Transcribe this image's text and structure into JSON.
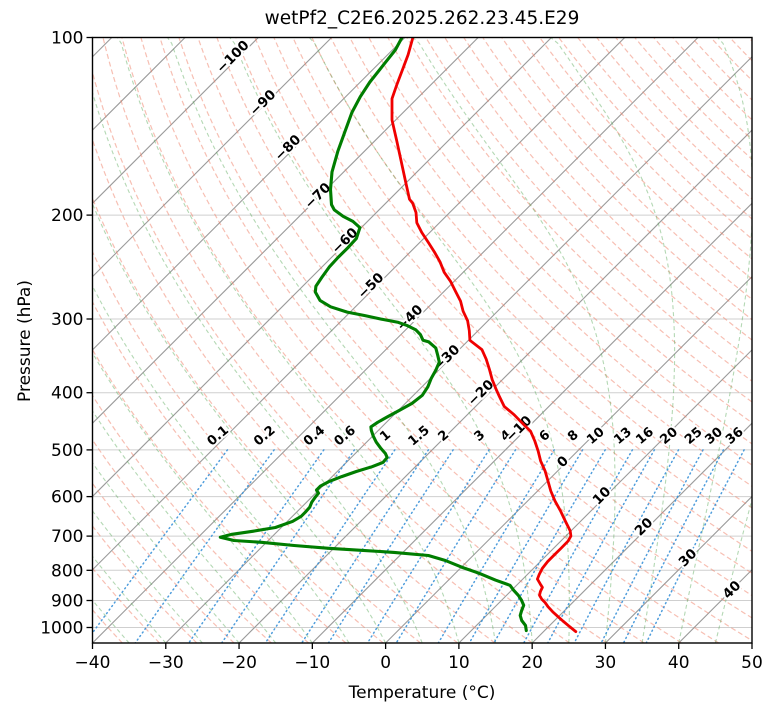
{
  "title": "wetPf2_C2E6.2025.262.23.45.E29",
  "axes": {
    "xlabel": "Temperature (°C)",
    "ylabel": "Pressure (hPa)",
    "x_tick_values": [
      -40,
      -30,
      -20,
      -10,
      0,
      10,
      20,
      30,
      40,
      50
    ],
    "x_tick_labels": [
      "−40",
      "−30",
      "−20",
      "−10",
      "0",
      "10",
      "20",
      "30",
      "40",
      "50"
    ],
    "y_tick_values": [
      100,
      200,
      300,
      400,
      500,
      600,
      700,
      800,
      900,
      1000
    ],
    "y_tick_labels": [
      "100",
      "200",
      "300",
      "400",
      "500",
      "600",
      "700",
      "800",
      "900",
      "1000"
    ]
  },
  "colors": {
    "temperature": "#f00000",
    "dewpoint": "#007d00",
    "isotherm": "#9a9a9a",
    "grid": "#cfcfcf",
    "dry_adiabat": "#f08068",
    "moist_adiabat": "#58a858",
    "mixing_ratio": "#3c92d8",
    "label_blue": "#2f7fc1",
    "label_gray": "#8a8a8a",
    "label_red": "#c43535",
    "frame": "#000000"
  },
  "chart_data": {
    "type": "line",
    "subtype": "skew-t-log-p-sounding",
    "title": "wetPf2_C2E6.2025.262.23.45.E29",
    "xlabel": "Temperature (°C)",
    "ylabel": "Pressure (hPa)",
    "xlim": [
      -40,
      50
    ],
    "ylim_hpa": [
      1062,
      100
    ],
    "y_scale": "log",
    "skew_deg": 45,
    "grid": true,
    "series": [
      {
        "name": "temperature",
        "color": "#f00000",
        "points_p_hpa_t_c": [
          [
            100,
            -78.9
          ],
          [
            107,
            -77.2
          ],
          [
            112,
            -76.2
          ],
          [
            120,
            -74.7
          ],
          [
            127,
            -73.4
          ],
          [
            138,
            -70.5
          ],
          [
            149,
            -67.2
          ],
          [
            161,
            -63.9
          ],
          [
            174,
            -60.6
          ],
          [
            188,
            -57.3
          ],
          [
            191,
            -56.3
          ],
          [
            198,
            -54.6
          ],
          [
            206,
            -53.1
          ],
          [
            214,
            -51.1
          ],
          [
            223,
            -48.7
          ],
          [
            231,
            -46.7
          ],
          [
            240,
            -44.6
          ],
          [
            250,
            -42.6
          ],
          [
            259,
            -40.5
          ],
          [
            269,
            -38.5
          ],
          [
            280,
            -36.4
          ],
          [
            291,
            -34.7
          ],
          [
            302,
            -32.8
          ],
          [
            314,
            -31.2
          ],
          [
            326,
            -29.8
          ],
          [
            338,
            -26.9
          ],
          [
            351,
            -25.0
          ],
          [
            365,
            -23.2
          ],
          [
            380,
            -21.4
          ],
          [
            395,
            -19.5
          ],
          [
            406,
            -18.1
          ],
          [
            422,
            -16.1
          ],
          [
            436,
            -13.6
          ],
          [
            456,
            -10.5
          ],
          [
            465,
            -9.1
          ],
          [
            483,
            -7.2
          ],
          [
            502,
            -5.4
          ],
          [
            522,
            -3.7
          ],
          [
            543,
            -1.7
          ],
          [
            564,
            0.0
          ],
          [
            587,
            1.8
          ],
          [
            610,
            3.7
          ],
          [
            634,
            5.8
          ],
          [
            659,
            7.8
          ],
          [
            686,
            9.9
          ],
          [
            700,
            10.7
          ],
          [
            714,
            11.0
          ],
          [
            734,
            11.0
          ],
          [
            752,
            11.0
          ],
          [
            773,
            11.0
          ],
          [
            794,
            11.2
          ],
          [
            813,
            11.6
          ],
          [
            828,
            12.0
          ],
          [
            843,
            13.0
          ],
          [
            855,
            13.8
          ],
          [
            869,
            14.1
          ],
          [
            882,
            14.5
          ],
          [
            895,
            15.3
          ],
          [
            908,
            16.3
          ],
          [
            922,
            17.2
          ],
          [
            940,
            18.5
          ],
          [
            957,
            19.8
          ],
          [
            975,
            21.2
          ],
          [
            993,
            22.6
          ],
          [
            1016,
            24.4
          ]
        ]
      },
      {
        "name": "dewpoint",
        "color": "#007d00",
        "points_p_hpa_t_c": [
          [
            100,
            -80.4
          ],
          [
            105,
            -79.6
          ],
          [
            111,
            -79.2
          ],
          [
            119,
            -78.7
          ],
          [
            126,
            -78.0
          ],
          [
            134,
            -77.0
          ],
          [
            144,
            -75.4
          ],
          [
            156,
            -73.6
          ],
          [
            169,
            -71.6
          ],
          [
            181,
            -69.4
          ],
          [
            192,
            -67.2
          ],
          [
            196,
            -66.1
          ],
          [
            201,
            -64.0
          ],
          [
            205,
            -62.0
          ],
          [
            210,
            -60.2
          ],
          [
            219,
            -59.2
          ],
          [
            227,
            -59.1
          ],
          [
            236,
            -59.1
          ],
          [
            245,
            -59.0
          ],
          [
            255,
            -58.6
          ],
          [
            264,
            -58.2
          ],
          [
            270,
            -57.5
          ],
          [
            279,
            -55.7
          ],
          [
            286,
            -53.4
          ],
          [
            292,
            -50.4
          ],
          [
            296,
            -47.5
          ],
          [
            300,
            -44.9
          ],
          [
            304,
            -42.0
          ],
          [
            308,
            -40.3
          ],
          [
            313,
            -38.6
          ],
          [
            319,
            -37.3
          ],
          [
            326,
            -36.2
          ],
          [
            328,
            -35.2
          ],
          [
            336,
            -33.4
          ],
          [
            346,
            -32.1
          ],
          [
            355,
            -31.0
          ],
          [
            366,
            -30.4
          ],
          [
            378,
            -29.9
          ],
          [
            391,
            -29.2
          ],
          [
            404,
            -28.8
          ],
          [
            417,
            -29.1
          ],
          [
            429,
            -29.9
          ],
          [
            439,
            -30.6
          ],
          [
            449,
            -31.2
          ],
          [
            457,
            -31.5
          ],
          [
            463,
            -31.0
          ],
          [
            474,
            -29.9
          ],
          [
            485,
            -28.7
          ],
          [
            497,
            -27.2
          ],
          [
            507,
            -25.9
          ],
          [
            515,
            -25.1
          ],
          [
            525,
            -25.0
          ],
          [
            534,
            -25.9
          ],
          [
            544,
            -27.4
          ],
          [
            555,
            -28.7
          ],
          [
            566,
            -29.8
          ],
          [
            576,
            -30.3
          ],
          [
            585,
            -30.3
          ],
          [
            592,
            -29.6
          ],
          [
            601,
            -29.5
          ],
          [
            613,
            -29.3
          ],
          [
            625,
            -28.9
          ],
          [
            638,
            -28.8
          ],
          [
            648,
            -28.8
          ],
          [
            661,
            -29.3
          ],
          [
            677,
            -30.8
          ],
          [
            687,
            -33.4
          ],
          [
            695,
            -35.8
          ],
          [
            703,
            -37.0
          ],
          [
            712,
            -34.7
          ],
          [
            717,
            -30.7
          ],
          [
            726,
            -25.8
          ],
          [
            734,
            -20.7
          ],
          [
            740,
            -16.0
          ],
          [
            746,
            -11.2
          ],
          [
            755,
            -6.1
          ],
          [
            770,
            -3.1
          ],
          [
            790,
            0.0
          ],
          [
            809,
            3.2
          ],
          [
            831,
            6.4
          ],
          [
            848,
            9.1
          ],
          [
            865,
            10.3
          ],
          [
            882,
            11.6
          ],
          [
            899,
            12.7
          ],
          [
            917,
            13.7
          ],
          [
            935,
            14.1
          ],
          [
            954,
            14.6
          ],
          [
            973,
            15.5
          ],
          [
            992,
            16.7
          ],
          [
            1012,
            17.5
          ]
        ]
      }
    ],
    "background": {
      "isotherms_c": {
        "from": -120,
        "to": 50,
        "step": 10
      },
      "dry_adiabats_theta_c": {
        "from": -40,
        "to": 190,
        "step": 5
      },
      "moist_adiabats_t0_c": {
        "from": -40,
        "to": 45,
        "step": 5
      },
      "mixing_ratio_g_kg": [
        0.1,
        0.2,
        0.4,
        0.6,
        1,
        1.5,
        2,
        3,
        4,
        6,
        8,
        10,
        13,
        16,
        20,
        25,
        30,
        36
      ],
      "mixing_ratio_labels": [
        "0.1",
        "0.2",
        "0.4",
        "0.6",
        "1",
        "1.5",
        "2",
        "3",
        "4",
        "6",
        "8",
        "10",
        "13",
        "16",
        "20",
        "25",
        "30",
        "36"
      ],
      "mixing_ratio_p_range_hpa": [
        500,
        1062
      ],
      "pressure_grid_hpa": [
        100,
        200,
        300,
        400,
        500,
        600,
        700,
        800,
        900,
        1000
      ]
    },
    "isotherm_labels": [
      {
        "text": "−100",
        "x": 233,
        "y": 57,
        "color": "#2f7fc1"
      },
      {
        "text": "−90",
        "x": 263,
        "y": 103,
        "color": "#2f7fc1"
      },
      {
        "text": "−80",
        "x": 288,
        "y": 148,
        "color": "#2f7fc1"
      },
      {
        "text": "−70",
        "x": 318,
        "y": 196,
        "color": "#2f7fc1"
      },
      {
        "text": "−60",
        "x": 345,
        "y": 241,
        "color": "#2f7fc1"
      },
      {
        "text": "−50",
        "x": 371,
        "y": 286,
        "color": "#2f7fc1"
      },
      {
        "text": "−40",
        "x": 410,
        "y": 318,
        "color": "#2f7fc1"
      },
      {
        "text": "−30",
        "x": 447,
        "y": 358,
        "color": "#2f7fc1"
      },
      {
        "text": "−20",
        "x": 481,
        "y": 393,
        "color": "#2f7fc1"
      },
      {
        "text": "−10",
        "x": 519,
        "y": 429,
        "color": "#2f7fc1"
      },
      {
        "text": "0",
        "x": 563,
        "y": 462,
        "color": "#8a8a8a"
      },
      {
        "text": "10",
        "x": 602,
        "y": 496,
        "color": "#c43535"
      },
      {
        "text": "20",
        "x": 644,
        "y": 527,
        "color": "#c43535"
      },
      {
        "text": "30",
        "x": 688,
        "y": 558,
        "color": "#c43535"
      },
      {
        "text": "40",
        "x": 732,
        "y": 590,
        "color": "#c43535"
      }
    ]
  }
}
